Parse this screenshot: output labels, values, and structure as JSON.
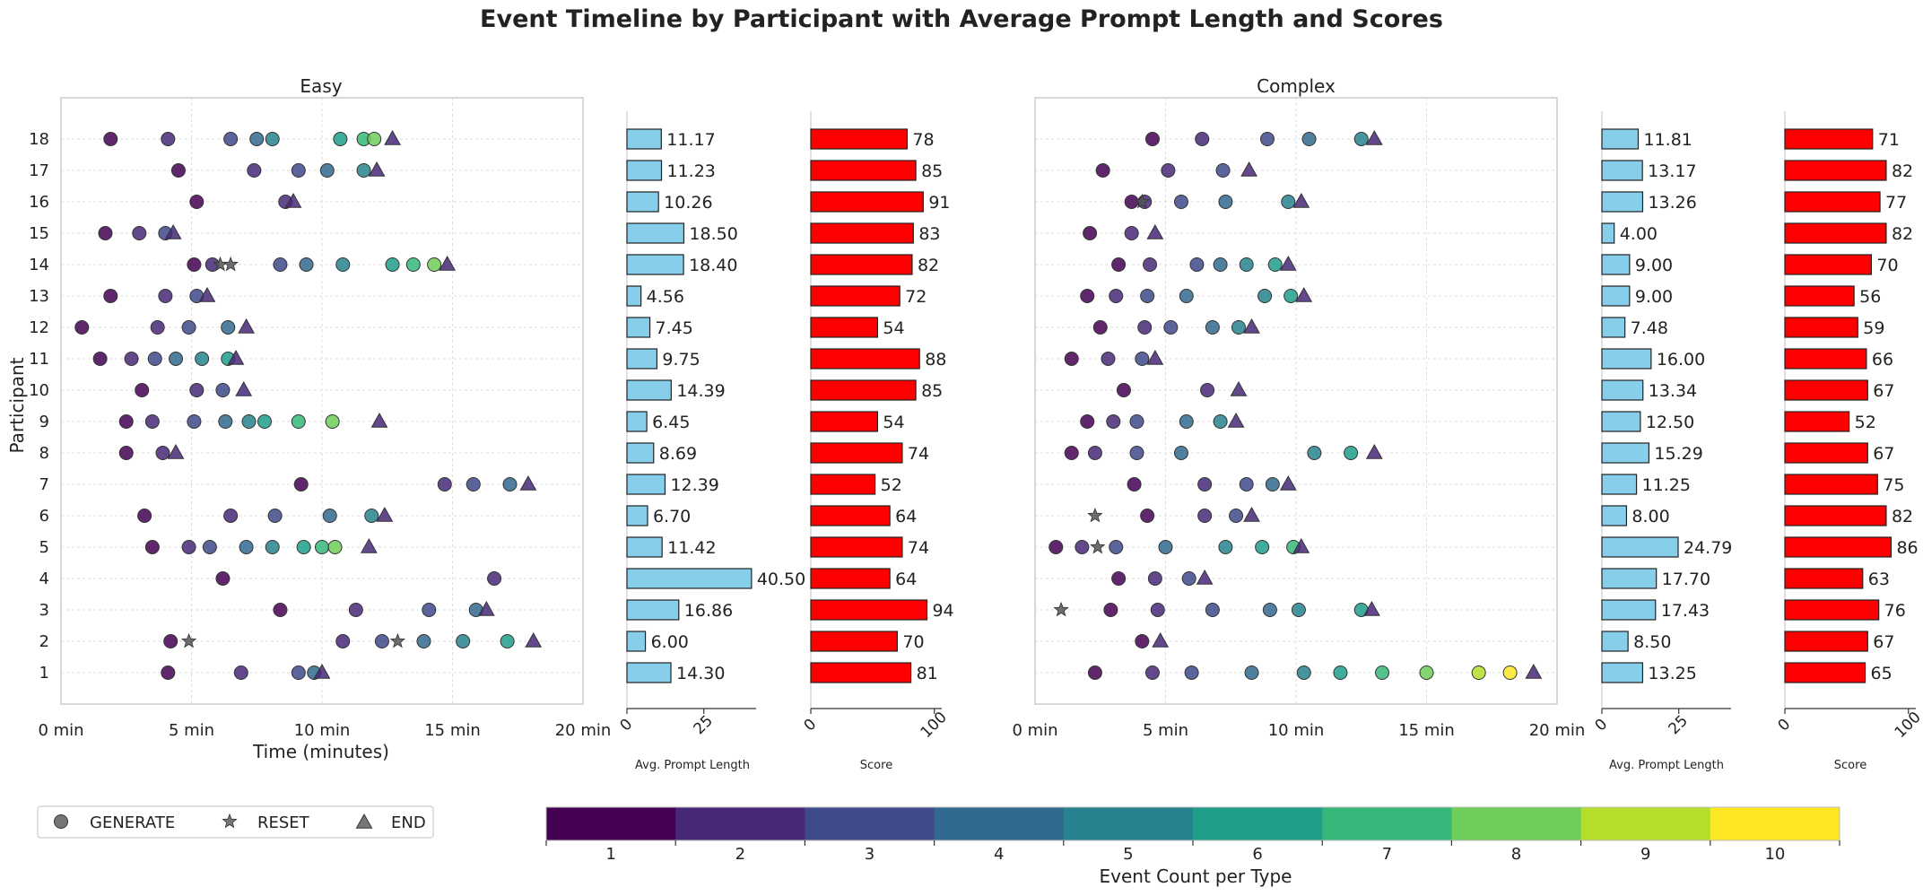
{
  "title": "Event Timeline by Participant with Average Prompt Length and Scores",
  "colors": {
    "prompt_bar": "#87CEEB",
    "score_bar": "#FF0000",
    "viridis": [
      "#440154",
      "#482878",
      "#3e4a89",
      "#31688e",
      "#26828e",
      "#1f9e89",
      "#35b779",
      "#6ece58",
      "#b5de2b",
      "#fde725"
    ]
  },
  "legend": {
    "items": [
      {
        "label": "GENERATE",
        "marker": "circle"
      },
      {
        "label": "RESET",
        "marker": "star"
      },
      {
        "label": "END",
        "marker": "triangle"
      }
    ]
  },
  "colorbar": {
    "label": "Event Count per Type",
    "ticks": [
      "1",
      "2",
      "3",
      "4",
      "5",
      "6",
      "7",
      "8",
      "9",
      "10"
    ]
  },
  "chart_data": [
    {
      "type": "scatter",
      "id": "easy-timeline",
      "title": "Easy",
      "xlabel": "Time (minutes)",
      "ylabel": "Participant",
      "xlim": [
        0,
        20
      ],
      "x_ticks": [
        0,
        5,
        10,
        15,
        20
      ],
      "x_tick_labels": [
        "0 min",
        "5 min",
        "10 min",
        "15 min",
        "20 min"
      ],
      "participants": [
        "1",
        "2",
        "3",
        "4",
        "5",
        "6",
        "7",
        "8",
        "9",
        "10",
        "11",
        "12",
        "13",
        "14",
        "15",
        "16",
        "17",
        "18"
      ],
      "events": [
        {
          "p": 1,
          "t": [
            4.1,
            6.9,
            9.1,
            9.7
          ],
          "c": [
            1,
            2,
            3,
            4
          ],
          "end": 10.0
        },
        {
          "p": 2,
          "t": [
            4.2,
            10.8,
            12.3,
            13.9,
            15.4,
            17.1
          ],
          "c": [
            1,
            2,
            3,
            4,
            5,
            6
          ],
          "resets": [
            4.9,
            12.9
          ],
          "end": 18.1
        },
        {
          "p": 3,
          "t": [
            8.4,
            11.3,
            14.1,
            15.9
          ],
          "c": [
            1,
            2,
            3,
            4
          ],
          "end": 16.3
        },
        {
          "p": 4,
          "t": [
            6.2,
            16.6
          ],
          "c": [
            1,
            2
          ]
        },
        {
          "p": 5,
          "t": [
            3.5,
            4.9,
            5.7,
            7.1,
            8.1,
            9.3,
            10.0,
            10.5
          ],
          "c": [
            1,
            2,
            3,
            4,
            5,
            6,
            7,
            8
          ],
          "end": 11.8
        },
        {
          "p": 6,
          "t": [
            3.2,
            6.5,
            8.2,
            10.3,
            11.9
          ],
          "c": [
            1,
            2,
            3,
            4,
            5
          ],
          "end": 12.4
        },
        {
          "p": 7,
          "t": [
            9.2,
            14.7,
            15.8,
            17.2
          ],
          "c": [
            1,
            2,
            3,
            4
          ],
          "end": 17.9
        },
        {
          "p": 8,
          "t": [
            2.5,
            3.9
          ],
          "c": [
            1,
            2
          ],
          "end": 4.4
        },
        {
          "p": 9,
          "t": [
            2.5,
            3.5,
            5.1,
            6.3,
            7.2,
            7.8,
            9.1,
            10.4
          ],
          "c": [
            1,
            2,
            3,
            4,
            5,
            6,
            7,
            8
          ],
          "end": 12.2
        },
        {
          "p": 10,
          "t": [
            3.1,
            5.2,
            6.2
          ],
          "c": [
            1,
            2,
            3
          ],
          "end": 7.0
        },
        {
          "p": 11,
          "t": [
            1.5,
            2.7,
            3.6,
            4.4,
            5.4,
            6.4
          ],
          "c": [
            1,
            2,
            3,
            4,
            5,
            6
          ],
          "end": 6.7
        },
        {
          "p": 12,
          "t": [
            0.8,
            3.7,
            4.9,
            6.4
          ],
          "c": [
            1,
            2,
            3,
            4
          ],
          "end": 7.1
        },
        {
          "p": 13,
          "t": [
            1.9,
            4.0,
            5.2
          ],
          "c": [
            1,
            2,
            3
          ],
          "end": 5.6
        },
        {
          "p": 14,
          "t": [
            5.1,
            5.8,
            8.4,
            9.4,
            10.8,
            12.7,
            13.5,
            14.3
          ],
          "c": [
            1,
            2,
            3,
            4,
            5,
            6,
            7,
            8
          ],
          "resets": [
            6.1,
            6.5
          ],
          "end": 14.8
        },
        {
          "p": 15,
          "t": [
            1.7,
            3.0,
            4.0
          ],
          "c": [
            1,
            2,
            3
          ],
          "end": 4.3
        },
        {
          "p": 16,
          "t": [
            5.2,
            8.6
          ],
          "c": [
            1,
            2
          ],
          "end": 8.9
        },
        {
          "p": 17,
          "t": [
            4.5,
            7.4,
            9.1,
            10.2,
            11.6
          ],
          "c": [
            1,
            2,
            3,
            4,
            5
          ],
          "end": 12.1
        },
        {
          "p": 18,
          "t": [
            1.9,
            4.1,
            6.5,
            7.5,
            8.1,
            10.7,
            11.6,
            12.0
          ],
          "c": [
            1,
            2,
            3,
            4,
            5,
            6,
            7,
            8
          ],
          "end": 12.7
        }
      ]
    },
    {
      "type": "bar",
      "id": "easy-prompt",
      "orientation": "horizontal",
      "xlabel": "Avg. Prompt Length",
      "xlim": [
        0,
        42
      ],
      "x_ticks": [
        0,
        25
      ],
      "values": [
        14.3,
        6.0,
        16.86,
        40.5,
        11.42,
        6.7,
        12.39,
        8.69,
        6.45,
        14.39,
        9.75,
        7.45,
        4.56,
        18.4,
        18.5,
        10.26,
        11.23,
        11.17
      ],
      "labels": [
        "14.30",
        "6.00",
        "16.86",
        "40.50",
        "11.42",
        "6.70",
        "12.39",
        "8.69",
        "6.45",
        "14.39",
        "9.75",
        "7.45",
        "4.56",
        "18.40",
        "18.50",
        "10.26",
        "11.23",
        "11.17"
      ]
    },
    {
      "type": "bar",
      "id": "easy-score",
      "orientation": "horizontal",
      "xlabel": "Score",
      "xlim": [
        0,
        106
      ],
      "x_ticks": [
        0,
        100
      ],
      "values": [
        81,
        70,
        94,
        64,
        74,
        64,
        52,
        74,
        54,
        85,
        88,
        54,
        72,
        82,
        83,
        91,
        85,
        78
      ],
      "labels": [
        "81",
        "70",
        "94",
        "64",
        "74",
        "64",
        "52",
        "74",
        "54",
        "85",
        "88",
        "54",
        "72",
        "82",
        "83",
        "91",
        "85",
        "78"
      ]
    },
    {
      "type": "scatter",
      "id": "complex-timeline",
      "title": "Complex",
      "xlim": [
        0,
        20
      ],
      "x_ticks": [
        0,
        5,
        10,
        15,
        20
      ],
      "x_tick_labels": [
        "0 min",
        "5 min",
        "10 min",
        "15 min",
        "20 min"
      ],
      "events": [
        {
          "p": 1,
          "t": [
            2.3,
            4.5,
            6.0,
            8.3,
            10.3,
            11.7,
            13.3,
            15.0,
            17.0,
            18.2
          ],
          "c": [
            1,
            2,
            3,
            4,
            5,
            6,
            7,
            8,
            9,
            10
          ],
          "end": 19.1
        },
        {
          "p": 2,
          "t": [
            4.1
          ],
          "c": [
            1
          ],
          "end": 4.8
        },
        {
          "p": 3,
          "t": [
            2.9,
            4.7,
            6.8,
            9.0,
            10.1,
            12.5
          ],
          "c": [
            1,
            2,
            3,
            4,
            5,
            6
          ],
          "resets": [
            1.0
          ],
          "end": 12.9
        },
        {
          "p": 4,
          "t": [
            3.2,
            4.6,
            5.9
          ],
          "c": [
            1,
            2,
            3
          ],
          "end": 6.5
        },
        {
          "p": 5,
          "t": [
            0.8,
            1.8,
            3.1,
            5.0,
            7.3,
            8.7,
            9.9
          ],
          "c": [
            1,
            2,
            3,
            4,
            5,
            6,
            7
          ],
          "resets": [
            2.4
          ],
          "end": 10.2
        },
        {
          "p": 6,
          "t": [
            4.3,
            6.5,
            7.7
          ],
          "c": [
            1,
            2,
            3
          ],
          "resets": [
            2.3
          ],
          "end": 8.3
        },
        {
          "p": 7,
          "t": [
            3.8,
            6.5,
            8.1,
            9.1
          ],
          "c": [
            1,
            2,
            3,
            4
          ],
          "end": 9.7
        },
        {
          "p": 8,
          "t": [
            1.4,
            2.3,
            3.9,
            5.6,
            10.7,
            12.1
          ],
          "c": [
            1,
            2,
            3,
            4,
            5,
            6
          ],
          "end": 13.0
        },
        {
          "p": 9,
          "t": [
            2.0,
            3.0,
            3.9,
            5.8,
            7.1
          ],
          "c": [
            1,
            2,
            3,
            4,
            5
          ],
          "end": 7.7
        },
        {
          "p": 10,
          "t": [
            3.4,
            6.6
          ],
          "c": [
            1,
            2
          ],
          "end": 7.8
        },
        {
          "p": 11,
          "t": [
            1.4,
            2.8,
            4.1
          ],
          "c": [
            1,
            2,
            3
          ],
          "end": 4.6
        },
        {
          "p": 12,
          "t": [
            2.5,
            4.2,
            5.2,
            6.8,
            7.8
          ],
          "c": [
            1,
            2,
            3,
            4,
            5
          ],
          "end": 8.3
        },
        {
          "p": 13,
          "t": [
            2.0,
            3.1,
            4.3,
            5.8,
            8.8,
            9.8
          ],
          "c": [
            1,
            2,
            3,
            4,
            5,
            6
          ],
          "end": 10.3
        },
        {
          "p": 14,
          "t": [
            3.2,
            4.4,
            6.2,
            7.1,
            8.1,
            9.2
          ],
          "c": [
            1,
            2,
            3,
            4,
            5,
            6
          ],
          "end": 9.7
        },
        {
          "p": 15,
          "t": [
            2.1,
            3.7
          ],
          "c": [
            1,
            2
          ],
          "end": 4.6
        },
        {
          "p": 16,
          "t": [
            3.7,
            4.2,
            5.6,
            7.3,
            9.7
          ],
          "c": [
            1,
            2,
            3,
            4,
            5
          ],
          "resets": [
            4.1
          ],
          "end": 10.2
        },
        {
          "p": 17,
          "t": [
            2.6,
            5.1,
            7.2
          ],
          "c": [
            1,
            2,
            3
          ],
          "end": 8.2
        },
        {
          "p": 18,
          "t": [
            4.5,
            6.4,
            8.9,
            10.5,
            12.5
          ],
          "c": [
            1,
            2,
            3,
            4,
            5
          ],
          "end": 13.0
        }
      ]
    },
    {
      "type": "bar",
      "id": "complex-prompt",
      "orientation": "horizontal",
      "xlabel": "Avg. Prompt Length",
      "xlim": [
        0,
        42
      ],
      "x_ticks": [
        0,
        25
      ],
      "values": [
        13.25,
        8.5,
        17.43,
        17.7,
        24.79,
        8.0,
        11.25,
        15.29,
        12.5,
        13.34,
        16.0,
        7.48,
        9.0,
        9.0,
        4.0,
        13.26,
        13.17,
        11.81
      ],
      "labels": [
        "13.25",
        "8.50",
        "17.43",
        "17.70",
        "24.79",
        "8.00",
        "11.25",
        "15.29",
        "12.50",
        "13.34",
        "16.00",
        "7.48",
        "9.00",
        "9.00",
        "4.00",
        "13.26",
        "13.17",
        "11.81"
      ]
    },
    {
      "type": "bar",
      "id": "complex-score",
      "orientation": "horizontal",
      "xlabel": "Score",
      "xlim": [
        0,
        106
      ],
      "x_ticks": [
        0,
        100
      ],
      "values": [
        65,
        67,
        76,
        63,
        86,
        82,
        75,
        67,
        52,
        67,
        66,
        59,
        56,
        70,
        82,
        77,
        82,
        71
      ],
      "labels": [
        "65",
        "67",
        "76",
        "63",
        "86",
        "82",
        "75",
        "67",
        "52",
        "67",
        "66",
        "59",
        "56",
        "70",
        "82",
        "77",
        "82",
        "71"
      ]
    }
  ]
}
